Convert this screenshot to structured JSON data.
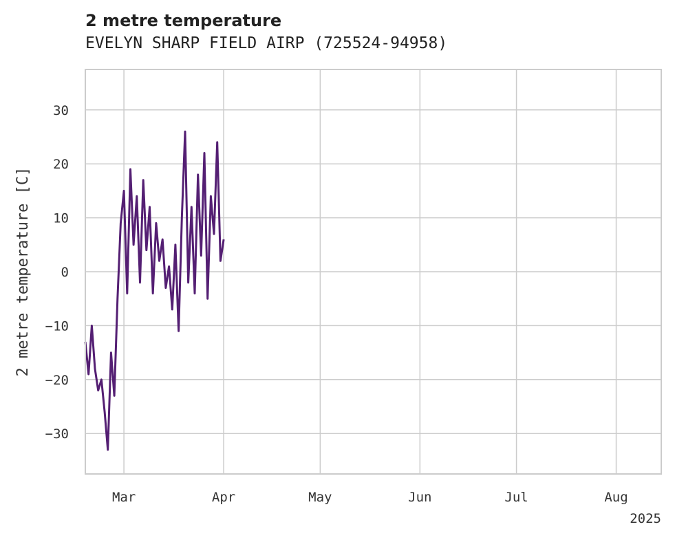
{
  "chart_data": {
    "type": "line",
    "title": "2 metre temperature",
    "subtitle": "EVELYN SHARP FIELD AIRP (725524-94958)",
    "xlabel": "",
    "ylabel": "2 metre temperature [C]",
    "year_label": "2025",
    "x_range": [
      "2025-02-17",
      "2025-08-15"
    ],
    "ylim": [
      -37.5,
      37.5
    ],
    "y_ticks": [
      -30,
      -20,
      -10,
      0,
      10,
      20,
      30
    ],
    "x_ticks": [
      {
        "date": "2025-03-01",
        "label": "Mar"
      },
      {
        "date": "2025-04-01",
        "label": "Apr"
      },
      {
        "date": "2025-05-01",
        "label": "May"
      },
      {
        "date": "2025-06-01",
        "label": "Jun"
      },
      {
        "date": "2025-07-01",
        "label": "Jul"
      },
      {
        "date": "2025-08-01",
        "label": "Aug"
      }
    ],
    "grid": true,
    "line_color": "#541f73",
    "series": [
      {
        "segments": [
          [
            [
              "2025-02-17",
              -13
            ],
            [
              "2025-02-18",
              -19
            ],
            [
              "2025-02-19",
              -10
            ],
            [
              "2025-02-20",
              -18
            ],
            [
              "2025-02-21",
              -22
            ],
            [
              "2025-02-22",
              -20
            ],
            [
              "2025-02-23",
              -26
            ],
            [
              "2025-02-24",
              -33
            ],
            [
              "2025-02-25",
              -15
            ],
            [
              "2025-02-26",
              -23
            ],
            [
              "2025-02-27",
              -5
            ],
            [
              "2025-02-28",
              9
            ],
            [
              "2025-03-01",
              15
            ],
            [
              "2025-03-02",
              -4
            ],
            [
              "2025-03-03",
              19
            ],
            [
              "2025-03-04",
              5
            ],
            [
              "2025-03-05",
              14
            ],
            [
              "2025-03-06",
              -2
            ],
            [
              "2025-03-07",
              17
            ],
            [
              "2025-03-08",
              4
            ],
            [
              "2025-03-09",
              12
            ],
            [
              "2025-03-10",
              -4
            ],
            [
              "2025-03-11",
              9
            ],
            [
              "2025-03-12",
              2
            ],
            [
              "2025-03-13",
              6
            ],
            [
              "2025-03-14",
              -3
            ],
            [
              "2025-03-15",
              1
            ],
            [
              "2025-03-16",
              -7
            ],
            [
              "2025-03-17",
              5
            ],
            [
              "2025-03-18",
              -11
            ],
            [
              "2025-03-19",
              10
            ],
            [
              "2025-03-20",
              26
            ],
            [
              "2025-03-21",
              -2
            ],
            [
              "2025-03-22",
              12
            ],
            [
              "2025-03-23",
              -4
            ],
            [
              "2025-03-24",
              18
            ],
            [
              "2025-03-25",
              3
            ],
            [
              "2025-03-26",
              22
            ],
            [
              "2025-03-27",
              -5
            ],
            [
              "2025-03-28",
              14
            ],
            [
              "2025-03-29",
              7
            ],
            [
              "2025-03-30",
              24
            ],
            [
              "2025-03-31",
              2
            ],
            [
              "2025-04-01",
              6
            ]
          ]
        ]
      }
    ]
  }
}
